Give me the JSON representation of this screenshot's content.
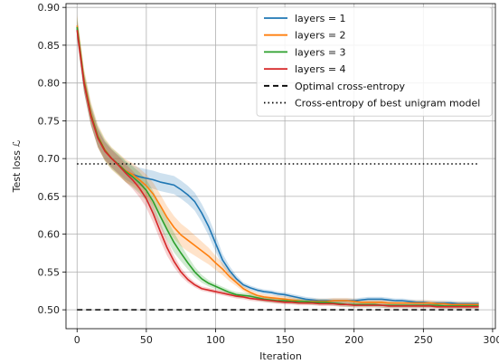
{
  "chart_data": {
    "type": "line",
    "title": "",
    "xlabel": "Iteration",
    "ylabel": "Test loss ℒ",
    "xlim": [
      -8,
      302
    ],
    "ylim": [
      0.475,
      0.905
    ],
    "xticks": [
      0,
      50,
      100,
      150,
      200,
      250,
      300
    ],
    "yticks": [
      0.5,
      0.55,
      0.6,
      0.65,
      0.7,
      0.75,
      0.8,
      0.85,
      0.9
    ],
    "grid": true,
    "legend_position": "top-right",
    "x": [
      0,
      5,
      10,
      15,
      20,
      25,
      30,
      35,
      40,
      45,
      50,
      55,
      60,
      65,
      70,
      75,
      80,
      85,
      90,
      95,
      100,
      105,
      110,
      115,
      120,
      125,
      130,
      135,
      140,
      145,
      150,
      155,
      160,
      165,
      170,
      175,
      180,
      185,
      190,
      195,
      200,
      205,
      210,
      215,
      220,
      225,
      230,
      235,
      240,
      245,
      250,
      255,
      260,
      265,
      270,
      275,
      280,
      285,
      290
    ],
    "series": [
      {
        "name": "layers = 1",
        "color": "#1f77b4",
        "values": [
          0.872,
          0.8,
          0.757,
          0.728,
          0.711,
          0.7,
          0.692,
          0.684,
          0.679,
          0.676,
          0.674,
          0.672,
          0.669,
          0.667,
          0.665,
          0.659,
          0.652,
          0.643,
          0.628,
          0.61,
          0.588,
          0.566,
          0.552,
          0.541,
          0.533,
          0.529,
          0.526,
          0.524,
          0.523,
          0.521,
          0.52,
          0.518,
          0.516,
          0.514,
          0.513,
          0.512,
          0.512,
          0.512,
          0.512,
          0.512,
          0.512,
          0.513,
          0.514,
          0.514,
          0.514,
          0.513,
          0.512,
          0.512,
          0.511,
          0.51,
          0.51,
          0.509,
          0.509,
          0.509,
          0.509,
          0.508,
          0.508,
          0.508,
          0.508
        ],
        "band": 0.012
      },
      {
        "name": "layers = 2",
        "color": "#ff7f0e",
        "values": [
          0.876,
          0.804,
          0.76,
          0.73,
          0.712,
          0.7,
          0.692,
          0.684,
          0.679,
          0.672,
          0.664,
          0.653,
          0.638,
          0.622,
          0.609,
          0.599,
          0.592,
          0.585,
          0.578,
          0.571,
          0.562,
          0.554,
          0.544,
          0.536,
          0.528,
          0.523,
          0.519,
          0.517,
          0.516,
          0.515,
          0.514,
          0.513,
          0.512,
          0.511,
          0.511,
          0.511,
          0.511,
          0.512,
          0.512,
          0.512,
          0.511,
          0.51,
          0.51,
          0.51,
          0.51,
          0.509,
          0.509,
          0.509,
          0.509,
          0.509,
          0.509,
          0.509,
          0.508,
          0.508,
          0.507,
          0.507,
          0.507,
          0.507,
          0.507
        ],
        "band": 0.015
      },
      {
        "name": "layers = 3",
        "color": "#2ca02c",
        "values": [
          0.874,
          0.802,
          0.758,
          0.729,
          0.711,
          0.7,
          0.692,
          0.683,
          0.676,
          0.668,
          0.658,
          0.643,
          0.624,
          0.606,
          0.589,
          0.575,
          0.562,
          0.55,
          0.541,
          0.535,
          0.531,
          0.527,
          0.523,
          0.52,
          0.519,
          0.518,
          0.516,
          0.514,
          0.513,
          0.512,
          0.512,
          0.511,
          0.511,
          0.511,
          0.51,
          0.51,
          0.51,
          0.509,
          0.508,
          0.507,
          0.507,
          0.507,
          0.507,
          0.507,
          0.506,
          0.506,
          0.506,
          0.506,
          0.506,
          0.506,
          0.506,
          0.506,
          0.506,
          0.505,
          0.505,
          0.505,
          0.505,
          0.505,
          0.505
        ],
        "band": 0.014
      },
      {
        "name": "layers = 4",
        "color": "#d62728",
        "values": [
          0.87,
          0.8,
          0.756,
          0.727,
          0.71,
          0.7,
          0.691,
          0.681,
          0.672,
          0.661,
          0.647,
          0.627,
          0.604,
          0.582,
          0.564,
          0.55,
          0.54,
          0.533,
          0.528,
          0.526,
          0.524,
          0.522,
          0.52,
          0.518,
          0.517,
          0.515,
          0.514,
          0.513,
          0.512,
          0.511,
          0.51,
          0.51,
          0.509,
          0.509,
          0.509,
          0.508,
          0.508,
          0.508,
          0.507,
          0.507,
          0.506,
          0.506,
          0.506,
          0.506,
          0.506,
          0.505,
          0.505,
          0.505,
          0.505,
          0.505,
          0.505,
          0.505,
          0.504,
          0.504,
          0.504,
          0.504,
          0.504,
          0.504,
          0.504
        ],
        "band": 0.012
      }
    ],
    "reference_lines": [
      {
        "name": "Optimal cross-entropy",
        "y": 0.5,
        "x_from": 0,
        "x_to": 290,
        "style": "dashed",
        "color": "#000000"
      },
      {
        "name": "Cross-entropy of best unigram model",
        "y": 0.693,
        "x_from": 0,
        "x_to": 290,
        "style": "dotted",
        "color": "#000000"
      }
    ]
  }
}
